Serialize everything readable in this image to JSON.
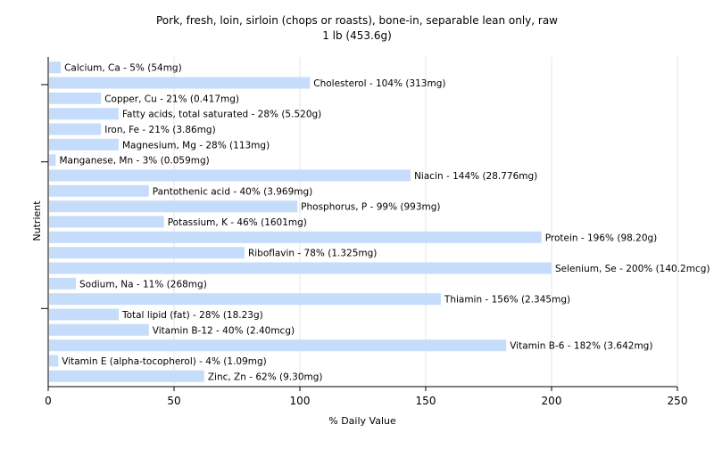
{
  "chart_data": {
    "type": "bar",
    "orientation": "horizontal",
    "title": "Pork, fresh, loin, sirloin (chops or roasts), bone-in, separable lean only, raw",
    "subtitle": "1 lb (453.6g)",
    "xlabel": "% Daily Value",
    "ylabel": "Nutrient",
    "xlim": [
      0,
      250
    ],
    "xticks": [
      0,
      50,
      100,
      150,
      200,
      250
    ],
    "grid": true,
    "bar_color": "#c6dcfb",
    "categories": [
      "Calcium, Ca",
      "Cholesterol",
      "Copper, Cu",
      "Fatty acids, total saturated",
      "Iron, Fe",
      "Magnesium, Mg",
      "Manganese, Mn",
      "Niacin",
      "Pantothenic acid",
      "Phosphorus, P",
      "Potassium, K",
      "Protein",
      "Riboflavin",
      "Selenium, Se",
      "Sodium, Na",
      "Thiamin",
      "Total lipid (fat)",
      "Vitamin B-12",
      "Vitamin B-6",
      "Vitamin E (alpha-tocopherol)",
      "Zinc, Zn"
    ],
    "values": [
      5,
      104,
      21,
      28,
      21,
      28,
      3,
      144,
      40,
      99,
      46,
      196,
      78,
      200,
      11,
      156,
      28,
      40,
      182,
      4,
      62
    ],
    "labels": [
      "Calcium, Ca - 5% (54mg)",
      "Cholesterol - 104% (313mg)",
      "Copper, Cu - 21% (0.417mg)",
      "Fatty acids, total saturated - 28% (5.520g)",
      "Iron, Fe - 21% (3.86mg)",
      "Magnesium, Mg - 28% (113mg)",
      "Manganese, Mn - 3% (0.059mg)",
      "Niacin - 144% (28.776mg)",
      "Pantothenic acid - 40% (3.969mg)",
      "Phosphorus, P - 99% (993mg)",
      "Potassium, K - 46% (1601mg)",
      "Protein - 196% (98.20g)",
      "Riboflavin - 78% (1.325mg)",
      "Selenium, Se - 200% (140.2mcg)",
      "Sodium, Na - 11% (268mg)",
      "Thiamin - 156% (2.345mg)",
      "Total lipid (fat) - 28% (18.23g)",
      "Vitamin B-12 - 40% (2.40mcg)",
      "Vitamin B-6 - 182% (3.642mg)",
      "Vitamin E (alpha-tocopherol) - 4% (1.09mg)",
      "Zinc, Zn - 62% (9.30mg)"
    ]
  }
}
